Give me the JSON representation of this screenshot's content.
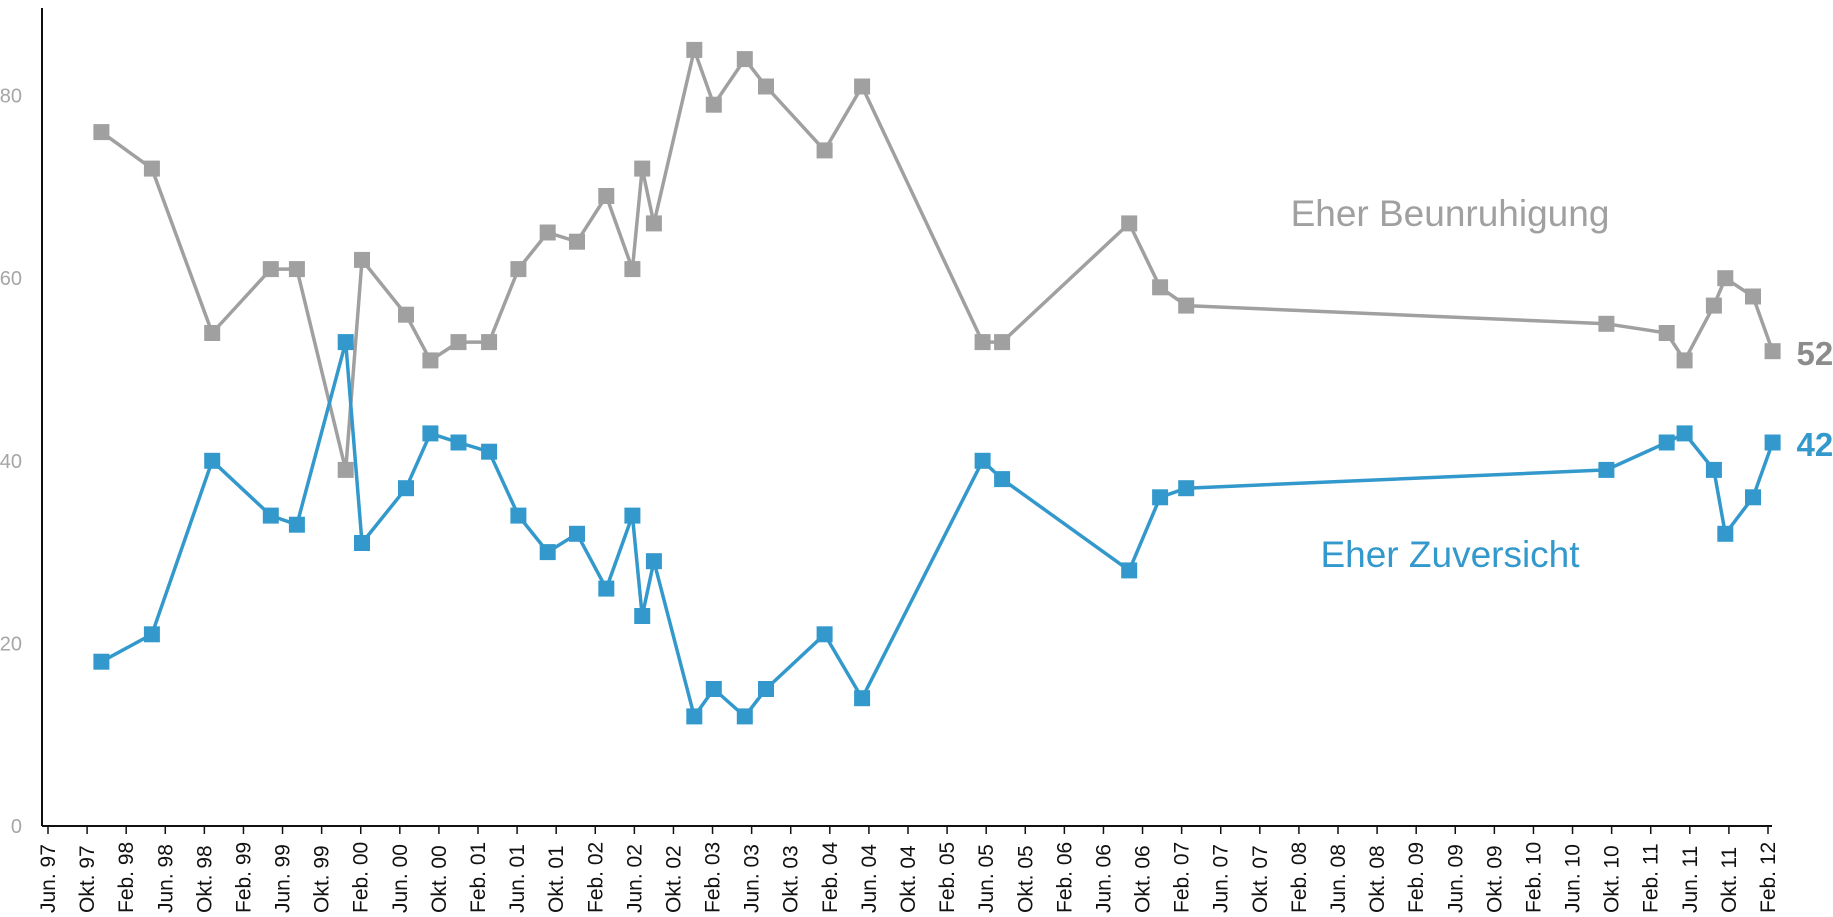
{
  "chart_data": {
    "type": "line",
    "title": "",
    "xlabel": "",
    "ylabel": "",
    "ylim": [
      0,
      90
    ],
    "yticks": [
      0,
      20,
      40,
      60,
      80
    ],
    "ytick_labels": [
      "0",
      "20",
      "40",
      "60",
      "80"
    ],
    "grid": false,
    "legend": "inline labels at right",
    "xtick_labels": [
      "Jun. 97",
      "Okt. 97",
      "Feb. 98",
      "Jun. 98",
      "Okt. 98",
      "Feb. 99",
      "Jun. 99",
      "Okt. 99",
      "Feb. 00",
      "Jun. 00",
      "Okt. 00",
      "Feb. 01",
      "Jun. 01",
      "Okt. 01",
      "Feb. 02",
      "Jun. 02",
      "Okt. 02",
      "Feb. 03",
      "Jun. 03",
      "Okt. 03",
      "Feb. 04",
      "Jun. 04",
      "Okt. 04",
      "Feb. 05",
      "Jun. 05",
      "Okt. 05",
      "Feb. 06",
      "Jun. 06",
      "Okt. 06",
      "Feb. 07",
      "Jun. 07",
      "Okt. 07",
      "Feb. 08",
      "Jun. 08",
      "Okt. 08",
      "Feb. 09",
      "Jun. 09",
      "Okt. 09",
      "Feb. 10",
      "Jun. 10",
      "Okt. 10",
      "Feb. 11",
      "Jun. 11",
      "Okt. 11",
      "Feb. 12"
    ],
    "x_domain": [
      "1997-06",
      "2012-02"
    ],
    "series": [
      {
        "name": "Eher Beunruhigung",
        "color": "#a0a0a0",
        "end_label": "52",
        "points": [
          [
            "1997-11-15",
            76
          ],
          [
            "1998-04-20",
            72
          ],
          [
            "1998-10-25",
            54
          ],
          [
            "1999-04-25",
            61
          ],
          [
            "1999-07-15",
            61
          ],
          [
            "1999-12-15",
            39
          ],
          [
            "2000-02-05",
            62
          ],
          [
            "2000-06-20",
            56
          ],
          [
            "2000-09-05",
            51
          ],
          [
            "2000-12-01",
            53
          ],
          [
            "2001-03-05",
            53
          ],
          [
            "2001-06-05",
            61
          ],
          [
            "2001-09-05",
            65
          ],
          [
            "2001-12-05",
            64
          ],
          [
            "2002-03-05",
            69
          ],
          [
            "2002-05-25",
            61
          ],
          [
            "2002-06-25",
            72
          ],
          [
            "2002-08-01",
            66
          ],
          [
            "2002-12-05",
            85
          ],
          [
            "2003-02-05",
            79
          ],
          [
            "2003-05-10",
            84
          ],
          [
            "2003-07-15",
            81
          ],
          [
            "2004-01-15",
            74
          ],
          [
            "2004-05-10",
            81
          ],
          [
            "2005-05-20",
            53
          ],
          [
            "2005-07-20",
            53
          ],
          [
            "2006-08-20",
            66
          ],
          [
            "2006-11-25",
            59
          ],
          [
            "2007-02-15",
            57
          ],
          [
            "2010-09-15",
            55
          ],
          [
            "2011-03-20",
            54
          ],
          [
            "2011-05-15",
            51
          ],
          [
            "2011-08-15",
            57
          ],
          [
            "2011-09-20",
            60
          ],
          [
            "2011-12-15",
            58
          ],
          [
            "2012-02-15",
            52
          ]
        ]
      },
      {
        "name": "Eher Zuversicht",
        "color": "#3399cc",
        "end_label": "42",
        "points": [
          [
            "1997-11-15",
            18
          ],
          [
            "1998-04-20",
            21
          ],
          [
            "1998-10-25",
            40
          ],
          [
            "1999-04-25",
            34
          ],
          [
            "1999-07-15",
            33
          ],
          [
            "1999-12-15",
            53
          ],
          [
            "2000-02-05",
            31
          ],
          [
            "2000-06-20",
            37
          ],
          [
            "2000-09-05",
            43
          ],
          [
            "2000-12-01",
            42
          ],
          [
            "2001-03-05",
            41
          ],
          [
            "2001-06-05",
            34
          ],
          [
            "2001-09-05",
            30
          ],
          [
            "2001-12-05",
            32
          ],
          [
            "2002-03-05",
            26
          ],
          [
            "2002-05-25",
            34
          ],
          [
            "2002-06-25",
            23
          ],
          [
            "2002-08-01",
            29
          ],
          [
            "2002-12-05",
            12
          ],
          [
            "2003-02-05",
            15
          ],
          [
            "2003-05-10",
            12
          ],
          [
            "2003-07-15",
            15
          ],
          [
            "2004-01-15",
            21
          ],
          [
            "2004-05-10",
            14
          ],
          [
            "2005-05-20",
            40
          ],
          [
            "2005-07-20",
            38
          ],
          [
            "2006-08-20",
            28
          ],
          [
            "2006-11-25",
            36
          ],
          [
            "2007-02-15",
            37
          ],
          [
            "2010-09-15",
            39
          ],
          [
            "2011-03-20",
            42
          ],
          [
            "2011-05-15",
            43
          ],
          [
            "2011-08-15",
            39
          ],
          [
            "2011-09-20",
            32
          ],
          [
            "2011-12-15",
            36
          ],
          [
            "2012-02-15",
            42
          ]
        ]
      }
    ]
  }
}
